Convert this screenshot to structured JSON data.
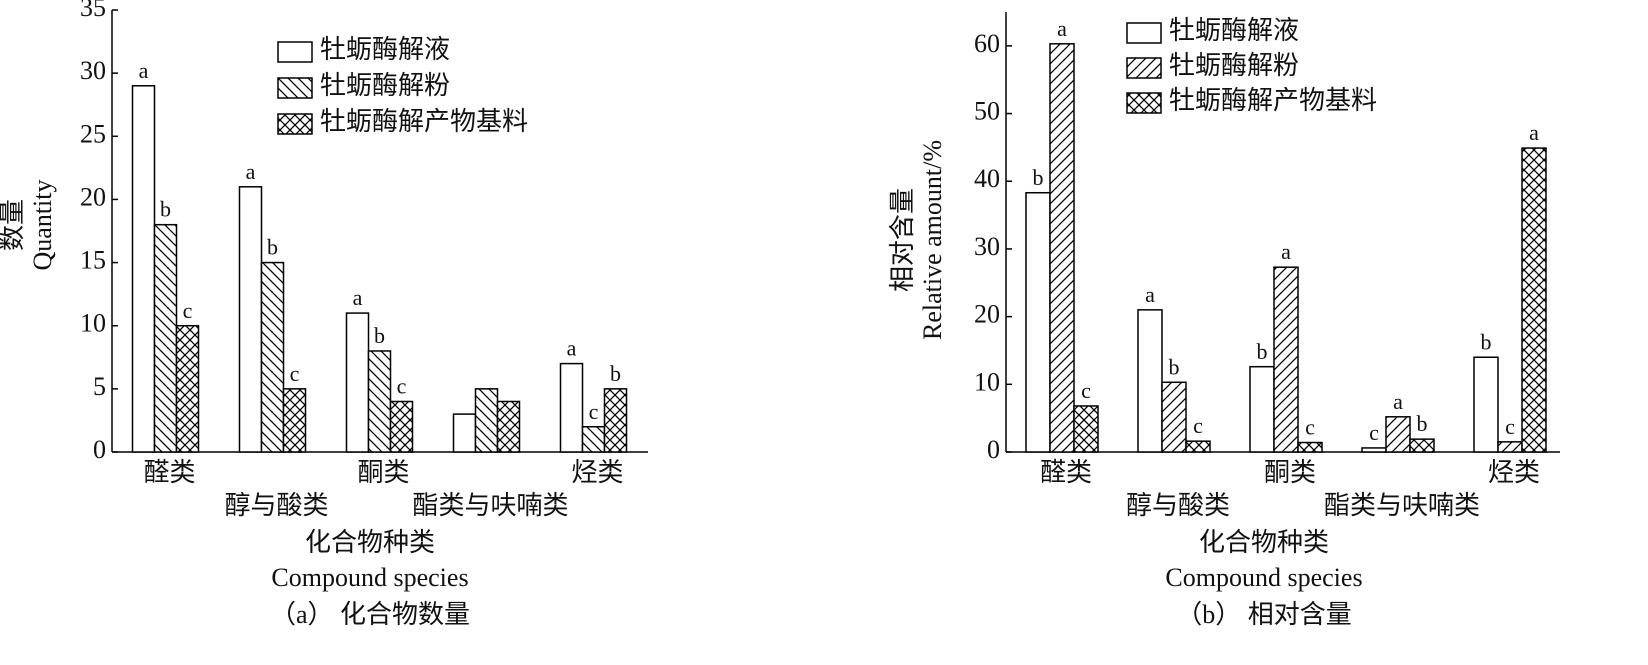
{
  "chart_data": [
    {
      "type": "bar",
      "caption": "（a） 化合物数量",
      "ylabel_cn": "数量",
      "ylabel_en": "Quantity",
      "xlabel_cn": "化合物种类",
      "xlabel_en": "Compound species",
      "categories": [
        "醛类",
        "醇与酸类",
        "酮类",
        "酯类与呋喃类",
        "烃类"
      ],
      "ylim": [
        0,
        35
      ],
      "yticks": [
        0,
        5,
        10,
        15,
        20,
        25,
        30,
        35
      ],
      "series": [
        {
          "name": "牡蛎酶解液",
          "color": "#000000",
          "pattern": "none",
          "values": [
            29,
            21,
            11,
            3,
            7
          ],
          "letters": [
            "a",
            "a",
            "a",
            null,
            "a"
          ]
        },
        {
          "name": "牡蛎酶解粉",
          "color": "#000000",
          "pattern": "backslash",
          "values": [
            18,
            15,
            8,
            5,
            2
          ],
          "letters": [
            "b",
            "b",
            "b",
            null,
            "c"
          ]
        },
        {
          "name": "牡蛎酶解产物基料",
          "color": "#000000",
          "pattern": "cross",
          "values": [
            10,
            5,
            4,
            4,
            5
          ],
          "letters": [
            "c",
            "c",
            "c",
            null,
            "b"
          ]
        }
      ]
    },
    {
      "type": "bar",
      "caption": "（b） 相对含量",
      "ylabel_cn": "相对含量",
      "ylabel_en": "Relative amount/%",
      "xlabel_cn": "化合物种类",
      "xlabel_en": "Compound species",
      "categories": [
        "醛类",
        "醇与酸类",
        "酮类",
        "酯类与呋喃类",
        "烃类"
      ],
      "ylim": [
        0,
        65
      ],
      "yticks": [
        0,
        10,
        20,
        30,
        40,
        50,
        60
      ],
      "series": [
        {
          "name": "牡蛎酶解液",
          "color": "#000000",
          "pattern": "none",
          "values": [
            38.3,
            21.0,
            12.6,
            0.6,
            14.0
          ],
          "letters": [
            "b",
            "a",
            "b",
            "c",
            "b"
          ]
        },
        {
          "name": "牡蛎酶解粉",
          "color": "#000000",
          "pattern": "slash",
          "values": [
            60.3,
            10.3,
            27.3,
            5.2,
            1.5
          ],
          "letters": [
            "a",
            "b",
            "a",
            "a",
            "c"
          ]
        },
        {
          "name": "牡蛎酶解产物基料",
          "color": "#000000",
          "pattern": "cross",
          "values": [
            6.8,
            1.6,
            1.4,
            1.9,
            44.9
          ],
          "letters": [
            "c",
            "c",
            "c",
            "b",
            "a"
          ]
        }
      ]
    }
  ]
}
